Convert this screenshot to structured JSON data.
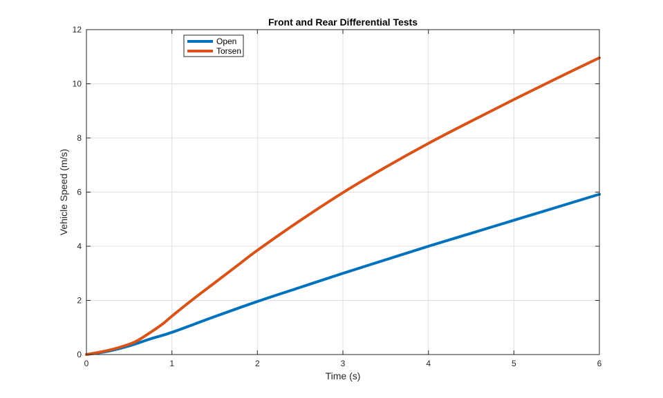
{
  "chart_data": {
    "type": "line",
    "title": "Front and Rear Differential Tests",
    "xlabel": "Time (s)",
    "ylabel": "Vehicle Speed (m/s)",
    "xlim": [
      0,
      6
    ],
    "ylim": [
      0,
      12
    ],
    "xticks": [
      0,
      1,
      2,
      3,
      4,
      5,
      6
    ],
    "yticks": [
      0,
      2,
      4,
      6,
      8,
      10,
      12
    ],
    "grid": true,
    "legend": "top-left",
    "series": [
      {
        "name": "Open",
        "color": "#0072BD",
        "x": [
          0,
          0.25,
          0.5,
          0.75,
          1,
          1.5,
          2,
          2.5,
          3,
          3.5,
          4,
          4.5,
          5,
          5.5,
          6
        ],
        "y": [
          0,
          0.12,
          0.32,
          0.58,
          0.82,
          1.4,
          1.96,
          2.48,
          3.0,
          3.5,
          4.0,
          4.48,
          4.96,
          5.44,
          5.92
        ]
      },
      {
        "name": "Torsen",
        "color": "#D95319",
        "x": [
          0,
          0.25,
          0.5,
          0.6,
          0.75,
          0.9,
          1,
          1.25,
          1.5,
          1.75,
          2,
          2.5,
          3,
          3.5,
          4,
          4.5,
          5,
          5.5,
          6
        ],
        "y": [
          0,
          0.15,
          0.38,
          0.52,
          0.82,
          1.15,
          1.42,
          2.05,
          2.65,
          3.25,
          3.85,
          4.95,
          5.98,
          6.92,
          7.8,
          8.62,
          9.42,
          10.2,
          10.96
        ]
      }
    ]
  }
}
